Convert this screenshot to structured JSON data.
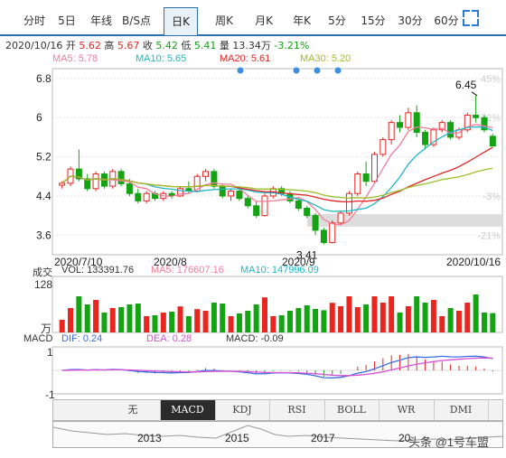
{
  "tabs": [
    {
      "label": "分时"
    },
    {
      "label": "5日"
    },
    {
      "label": "年线"
    },
    {
      "label": "B/S点"
    },
    {
      "label": "日K"
    },
    {
      "label": "周K"
    },
    {
      "label": "月K"
    },
    {
      "label": "年K"
    },
    {
      "label": "5分"
    },
    {
      "label": "15分"
    },
    {
      "label": "30分"
    },
    {
      "label": "60分"
    }
  ],
  "active_tab": "日K",
  "expand_icon": "fullscreen-icon",
  "quote": {
    "date": "2020/10/16",
    "open_label": "开",
    "open": "5.62",
    "high_label": "高",
    "high": "5.67",
    "close_label": "收",
    "close": "5.42",
    "low_label": "低",
    "low": "5.41",
    "volume_label": "量",
    "volume": "13.34万",
    "change": "-3.21%"
  },
  "ma": {
    "ma5": "MA5: 5.78",
    "ma10": "MA10: 5.65",
    "ma20": "MA20: 5.61",
    "ma30": "MA30: 5.20"
  },
  "volume_panel": {
    "title": "成交",
    "vol": "VOL: 133391.76",
    "ma5": "MA5: 176607.16",
    "ma10": "MA10: 147996.09",
    "y_top": "128",
    "unit": "万"
  },
  "macd_panel": {
    "title": "MACD",
    "dif": "DIF: 0.24",
    "dea": "DEA: 0.28",
    "macd": "MACD: -0.09",
    "y_top": "1",
    "y_bottom": "-1"
  },
  "indicator_buttons": [
    {
      "label": "无"
    },
    {
      "label": "MACD"
    },
    {
      "label": "KDJ"
    },
    {
      "label": "RSI"
    },
    {
      "label": "BOLL"
    },
    {
      "label": "WR"
    },
    {
      "label": "DMI"
    }
  ],
  "selected_indicator": "MACD",
  "timeline_years": [
    "2013",
    "2015",
    "2017",
    "20"
  ],
  "watermark": "头条 @1号车盟",
  "colors": {
    "up": "#e8251f",
    "down": "#13a313",
    "ma5": "#f27c9c",
    "ma10": "#1fb6c9",
    "ma20": "#e0262a",
    "ma30": "#9cbf2a",
    "accent": "#2a6fb0",
    "dif": "#3a6fe0",
    "dea": "#d94fd6"
  },
  "chart_data": {
    "type": "candlestick",
    "dates": [
      "2020/7/10",
      "2020/8",
      "2020/9",
      "2020/10/16"
    ],
    "y_ticks": [
      "6.8",
      "6",
      "5.2",
      "4.4",
      "3.6"
    ],
    "pct_ticks": [
      "45%",
      "32%",
      "",
      "-3%",
      "-21%"
    ],
    "ylim": [
      3.2,
      7.0
    ],
    "high_marker": "6.45",
    "low_marker": "3.41",
    "candles": [
      [
        4.62,
        4.7,
        4.55,
        4.66
      ],
      [
        4.66,
        5.0,
        4.6,
        4.95
      ],
      [
        4.95,
        5.35,
        4.7,
        4.75
      ],
      [
        4.75,
        4.85,
        4.5,
        4.55
      ],
      [
        4.55,
        4.9,
        4.5,
        4.85
      ],
      [
        4.85,
        4.9,
        4.55,
        4.6
      ],
      [
        4.6,
        4.95,
        4.55,
        4.9
      ],
      [
        4.9,
        4.95,
        4.6,
        4.65
      ],
      [
        4.65,
        4.75,
        4.4,
        4.45
      ],
      [
        4.45,
        4.55,
        4.25,
        4.3
      ],
      [
        4.3,
        4.5,
        4.25,
        4.45
      ],
      [
        4.45,
        4.5,
        4.3,
        4.35
      ],
      [
        4.35,
        4.5,
        4.3,
        4.45
      ],
      [
        4.45,
        4.5,
        4.35,
        4.4
      ],
      [
        4.4,
        4.6,
        4.38,
        4.55
      ],
      [
        4.55,
        4.7,
        4.45,
        4.5
      ],
      [
        4.5,
        4.85,
        4.48,
        4.8
      ],
      [
        4.8,
        4.95,
        4.7,
        4.9
      ],
      [
        4.9,
        4.95,
        4.55,
        4.6
      ],
      [
        4.6,
        4.65,
        4.35,
        4.4
      ],
      [
        4.4,
        4.55,
        4.3,
        4.5
      ],
      [
        4.5,
        4.55,
        4.3,
        4.35
      ],
      [
        4.35,
        4.4,
        4.15,
        4.2
      ],
      [
        4.2,
        4.3,
        3.95,
        4.0
      ],
      [
        4.0,
        4.45,
        3.98,
        4.4
      ],
      [
        4.4,
        4.6,
        4.35,
        4.55
      ],
      [
        4.55,
        4.6,
        4.4,
        4.45
      ],
      [
        4.45,
        4.5,
        4.25,
        4.3
      ],
      [
        4.3,
        4.35,
        4.1,
        4.15
      ],
      [
        4.15,
        4.2,
        3.95,
        4.0
      ],
      [
        4.0,
        4.05,
        3.6,
        3.7
      ],
      [
        3.7,
        3.75,
        3.41,
        3.45
      ],
      [
        3.45,
        3.9,
        3.43,
        3.85
      ],
      [
        3.85,
        4.1,
        3.8,
        4.05
      ],
      [
        4.05,
        4.5,
        4.0,
        4.45
      ],
      [
        4.45,
        4.9,
        4.4,
        4.85
      ],
      [
        4.85,
        5.1,
        4.6,
        4.7
      ],
      [
        4.7,
        5.3,
        4.65,
        5.25
      ],
      [
        5.25,
        5.6,
        5.2,
        5.55
      ],
      [
        5.55,
        5.95,
        5.45,
        5.9
      ],
      [
        5.9,
        6.05,
        5.7,
        5.8
      ],
      [
        5.8,
        6.2,
        5.75,
        6.1
      ],
      [
        6.1,
        6.25,
        5.6,
        5.7
      ],
      [
        5.7,
        5.75,
        5.35,
        5.45
      ],
      [
        5.45,
        5.8,
        5.4,
        5.75
      ],
      [
        5.75,
        5.95,
        5.7,
        5.9
      ],
      [
        5.9,
        5.95,
        5.55,
        5.6
      ],
      [
        5.6,
        5.8,
        5.55,
        5.75
      ],
      [
        5.75,
        6.1,
        5.7,
        6.05
      ],
      [
        6.05,
        6.45,
        5.9,
        6.0
      ],
      [
        6.0,
        6.05,
        5.7,
        5.75
      ],
      [
        5.62,
        5.67,
        5.41,
        5.42
      ]
    ]
  }
}
